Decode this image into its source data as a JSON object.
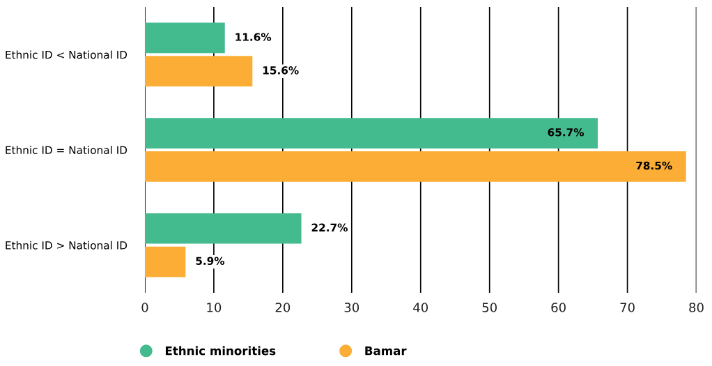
{
  "chart_data": {
    "type": "bar",
    "orientation": "horizontal",
    "categories": [
      "Ethnic ID < National ID",
      "Ethnic ID = National ID",
      "Ethnic ID > National ID"
    ],
    "series": [
      {
        "name": "Ethnic minorities",
        "color": "#43bb8f",
        "values": [
          11.6,
          65.7,
          22.7
        ],
        "value_labels": [
          "11.6%",
          "65.7%",
          "22.7%"
        ]
      },
      {
        "name": "Bamar",
        "color": "#fbad35",
        "values": [
          15.6,
          78.5,
          5.9
        ],
        "value_labels": [
          "15.6%",
          "78.5%",
          "5.9%"
        ]
      }
    ],
    "xlim": [
      0,
      80
    ],
    "xticks": [
      0,
      10,
      20,
      30,
      40,
      50,
      60,
      70,
      80
    ],
    "grid": "x",
    "legend": "bottom",
    "marker": "circle"
  }
}
